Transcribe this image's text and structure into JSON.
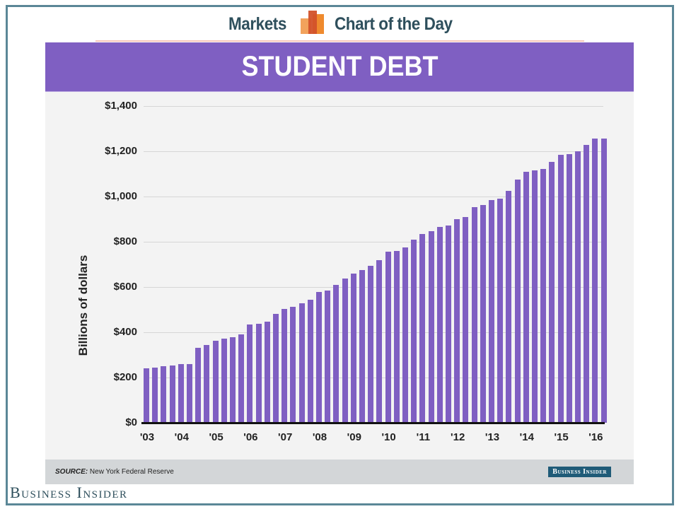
{
  "header": {
    "left_label": "Markets",
    "right_label": "Chart of the Day",
    "logo_icon": "bar-chart-logo-icon"
  },
  "title": "STUDENT DEBT",
  "colors": {
    "bar": "#7f5fc2",
    "title_bar": "#7f5fc2",
    "header_text": "#2e4f5c",
    "frame": "#5b8797",
    "logo_light": "#f2a25c",
    "logo_mid": "#d2522a",
    "logo_dark": "#ef8a2e",
    "badge": "#1f5b78"
  },
  "footer": {
    "source_label": "SOURCE:",
    "source_text": "New York Federal Reserve",
    "badge_text": "Business Insider",
    "brand": "Business Insider"
  },
  "chart_data": {
    "type": "bar",
    "title": "STUDENT DEBT",
    "xlabel": "",
    "ylabel": "Billions of dollars",
    "ylim": [
      0,
      1400
    ],
    "yticks": [
      0,
      200,
      400,
      600,
      800,
      1000,
      1200,
      1400
    ],
    "ytick_labels": [
      "$0",
      "$200",
      "$400",
      "$600",
      "$800",
      "$1,000",
      "$1,200",
      "$1,400"
    ],
    "grid": true,
    "legend": "none",
    "xtick_labels": [
      "'03",
      "'04",
      "'05",
      "'06",
      "'07",
      "'08",
      "'09",
      "'10",
      "'11",
      "'12",
      "'13",
      "'14",
      "'15",
      "'16"
    ],
    "xtick_bar_index": [
      0,
      4,
      8,
      12,
      16,
      20,
      24,
      28,
      32,
      36,
      40,
      44,
      48,
      52
    ],
    "frequency": "quarterly (2003 Q1 – 2016 Q2)",
    "values": [
      240,
      243,
      249,
      253,
      259,
      261,
      331,
      344,
      363,
      373,
      378,
      391,
      434,
      438,
      446,
      480,
      504,
      512,
      528,
      544,
      577,
      584,
      610,
      638,
      661,
      674,
      694,
      719,
      756,
      760,
      776,
      809,
      836,
      847,
      867,
      871,
      901,
      910,
      953,
      964,
      983,
      992,
      1024,
      1076,
      1108,
      1115,
      1123,
      1154,
      1185,
      1188,
      1201,
      1229,
      1257,
      1257
    ]
  }
}
